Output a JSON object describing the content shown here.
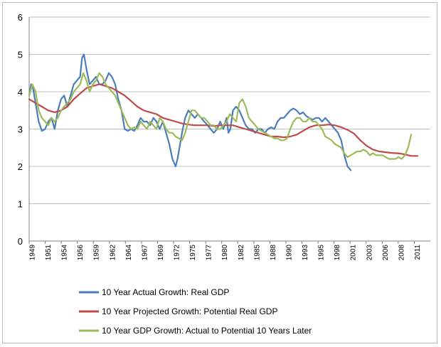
{
  "chart_data": {
    "type": "line",
    "title": "",
    "xlabel": "",
    "ylabel": "",
    "xlim": [
      1949,
      2012
    ],
    "ylim": [
      0,
      6
    ],
    "yticks": [
      0,
      1,
      2,
      3,
      4,
      5,
      6
    ],
    "xtick_labels": [
      "1949",
      "1951",
      "1954",
      "1956",
      "1959",
      "1962",
      "1964",
      "1967",
      "1969",
      "1972",
      "1975",
      "1977",
      "1980",
      "1982",
      "1985",
      "1988",
      "1990",
      "1993",
      "1995",
      "1998",
      "2001",
      "2003",
      "2006",
      "2008",
      "2011"
    ],
    "grid": "horizontal",
    "legend_position": "bottom",
    "series": [
      {
        "name": "10 Year Actual Growth: Real GDP",
        "color": "#4a7ebb",
        "x": [
          1949,
          1949.3,
          1949.6,
          1950,
          1950.5,
          1951,
          1951.5,
          1952,
          1952.5,
          1953,
          1953.5,
          1954,
          1954.5,
          1955,
          1955.5,
          1956,
          1956.5,
          1957,
          1957.3,
          1957.6,
          1958,
          1958.5,
          1959,
          1959.5,
          1960,
          1960.5,
          1961,
          1961.5,
          1962,
          1962.5,
          1963,
          1963.5,
          1964,
          1964.5,
          1965,
          1965.5,
          1966,
          1966.5,
          1967,
          1967.5,
          1968,
          1968.5,
          1969,
          1969.5,
          1970,
          1970.5,
          1971,
          1971.5,
          1972,
          1972.3,
          1972.6,
          1973,
          1973.5,
          1974,
          1974.5,
          1975,
          1975.5,
          1976,
          1976.5,
          1977,
          1977.5,
          1978,
          1978.5,
          1979,
          1979.5,
          1980,
          1980.3,
          1980.6,
          1981,
          1981.5,
          1982,
          1982.5,
          1983,
          1983.5,
          1984,
          1984.5,
          1985,
          1985.5,
          1986,
          1986.5,
          1987,
          1987.5,
          1988,
          1988.5,
          1989,
          1989.5,
          1990,
          1990.5,
          1991,
          1991.5,
          1992,
          1992.5,
          1993,
          1993.5,
          1994,
          1994.5,
          1995,
          1995.5,
          1996,
          1996.5,
          1997,
          1997.5,
          1998,
          1998.5,
          1999,
          1999.5
        ],
        "values": [
          3.9,
          4.2,
          4.1,
          3.7,
          3.2,
          2.95,
          3.0,
          3.2,
          3.3,
          3.0,
          3.5,
          3.8,
          3.9,
          3.6,
          3.9,
          4.2,
          4.3,
          4.4,
          4.9,
          5.0,
          4.6,
          4.2,
          4.3,
          4.4,
          4.2,
          4.2,
          4.3,
          4.5,
          4.4,
          4.2,
          3.8,
          3.5,
          3.0,
          2.95,
          3.0,
          2.95,
          3.1,
          3.3,
          3.2,
          3.2,
          3.1,
          3.3,
          3.2,
          3.0,
          3.2,
          2.9,
          2.6,
          2.2,
          2.0,
          2.2,
          2.5,
          2.9,
          3.3,
          3.5,
          3.4,
          3.3,
          3.4,
          3.3,
          3.2,
          3.1,
          3.0,
          2.9,
          3.0,
          3.2,
          3.0,
          3.3,
          2.9,
          3.0,
          3.5,
          3.6,
          3.5,
          3.3,
          3.1,
          3.0,
          3.0,
          2.9,
          3.0,
          3.0,
          2.9,
          3.0,
          3.05,
          3.0,
          3.2,
          3.3,
          3.3,
          3.4,
          3.5,
          3.55,
          3.5,
          3.4,
          3.45,
          3.35,
          3.3,
          3.25,
          3.3,
          3.3,
          3.2,
          3.3,
          3.2,
          3.1,
          3.0,
          2.9,
          2.7,
          2.3,
          2.0,
          1.9
        ]
      },
      {
        "name": "10 Year Projected Growth: Potential Real GDP",
        "color": "#be4b48",
        "x": [
          1949,
          1950,
          1951,
          1952,
          1953,
          1954,
          1955,
          1956,
          1957,
          1958,
          1959,
          1960,
          1961,
          1962,
          1963,
          1964,
          1965,
          1966,
          1967,
          1968,
          1969,
          1970,
          1971,
          1972,
          1973,
          1974,
          1975,
          1976,
          1977,
          1978,
          1979,
          1980,
          1981,
          1982,
          1983,
          1984,
          1985,
          1986,
          1987,
          1988,
          1989,
          1990,
          1991,
          1992,
          1993,
          1994,
          1995,
          1996,
          1997,
          1998,
          1999,
          2000,
          2001,
          2002,
          2003,
          2004,
          2005,
          2006,
          2007,
          2008,
          2009,
          2010
        ],
        "values": [
          3.8,
          3.7,
          3.6,
          3.5,
          3.45,
          3.5,
          3.6,
          3.8,
          3.95,
          4.1,
          4.15,
          4.2,
          4.15,
          4.1,
          4.0,
          3.9,
          3.75,
          3.6,
          3.5,
          3.45,
          3.4,
          3.3,
          3.25,
          3.2,
          3.15,
          3.12,
          3.1,
          3.1,
          3.1,
          3.08,
          3.1,
          3.1,
          3.1,
          3.05,
          3.0,
          2.95,
          2.9,
          2.85,
          2.8,
          2.8,
          2.78,
          2.8,
          2.85,
          2.95,
          3.05,
          3.1,
          3.1,
          3.12,
          3.1,
          3.05,
          2.98,
          2.88,
          2.7,
          2.55,
          2.45,
          2.4,
          2.38,
          2.36,
          2.35,
          2.32,
          2.28,
          2.28
        ]
      },
      {
        "name": "10 Year GDP Growth: Actual to Potential 10 Years Later",
        "color": "#9bbb59",
        "x": [
          1949,
          1949.5,
          1950,
          1950.5,
          1951,
          1951.5,
          1952,
          1952.5,
          1953,
          1953.5,
          1954,
          1954.5,
          1955,
          1955.5,
          1956,
          1956.5,
          1957,
          1957.5,
          1958,
          1958.5,
          1959,
          1959.5,
          1960,
          1960.5,
          1961,
          1961.5,
          1962,
          1962.5,
          1963,
          1963.5,
          1964,
          1964.5,
          1965,
          1965.5,
          1966,
          1966.5,
          1967,
          1967.5,
          1968,
          1968.5,
          1969,
          1969.5,
          1970,
          1970.5,
          1971,
          1971.5,
          1972,
          1972.5,
          1973,
          1973.5,
          1974,
          1974.5,
          1975,
          1975.5,
          1976,
          1976.5,
          1977,
          1977.5,
          1978,
          1978.5,
          1979,
          1979.5,
          1980,
          1980.5,
          1981,
          1981.5,
          1982,
          1982.5,
          1983,
          1983.5,
          1984,
          1984.5,
          1985,
          1985.5,
          1986,
          1986.5,
          1987,
          1987.5,
          1988,
          1988.5,
          1989,
          1989.5,
          1990,
          1990.5,
          1991,
          1991.5,
          1992,
          1992.5,
          1993,
          1993.5,
          1994,
          1994.5,
          1995,
          1995.5,
          1996,
          1996.5,
          1997,
          1997.5,
          1998,
          1998.5,
          1999,
          1999.5,
          2000,
          2000.5,
          2001,
          2001.5,
          2002,
          2002.5,
          2003,
          2003.5,
          2004,
          2004.5,
          2005,
          2005.5,
          2006,
          2006.5,
          2007,
          2007.5,
          2008,
          2008.5,
          2009
        ],
        "values": [
          3.9,
          4.2,
          4.0,
          3.5,
          3.3,
          3.2,
          3.1,
          3.3,
          3.2,
          3.3,
          3.5,
          3.6,
          3.7,
          3.8,
          4.0,
          4.1,
          4.2,
          4.5,
          4.3,
          4.0,
          4.2,
          4.3,
          4.5,
          4.4,
          4.2,
          4.1,
          4.0,
          3.9,
          3.7,
          3.5,
          3.3,
          3.1,
          3.0,
          3.05,
          3.0,
          3.2,
          3.1,
          3.0,
          3.2,
          3.1,
          3.0,
          3.3,
          3.2,
          3.0,
          2.9,
          2.9,
          2.8,
          2.75,
          2.7,
          2.9,
          3.2,
          3.5,
          3.5,
          3.4,
          3.3,
          3.3,
          3.2,
          3.1,
          3.1,
          3.0,
          3.0,
          3.1,
          3.2,
          3.4,
          3.3,
          3.2,
          3.7,
          3.8,
          3.6,
          3.3,
          3.2,
          3.1,
          3.0,
          2.95,
          2.9,
          2.85,
          2.8,
          2.75,
          2.75,
          2.7,
          2.7,
          2.75,
          3.0,
          3.2,
          3.3,
          3.3,
          3.2,
          3.2,
          3.3,
          3.2,
          3.2,
          3.1,
          3.0,
          2.8,
          2.75,
          2.7,
          2.6,
          2.55,
          2.5,
          2.35,
          2.25,
          2.3,
          2.35,
          2.4,
          2.4,
          2.45,
          2.4,
          2.3,
          2.35,
          2.3,
          2.3,
          2.3,
          2.25,
          2.2,
          2.2,
          2.2,
          2.25,
          2.2,
          2.3,
          2.5,
          2.85
        ]
      }
    ]
  }
}
